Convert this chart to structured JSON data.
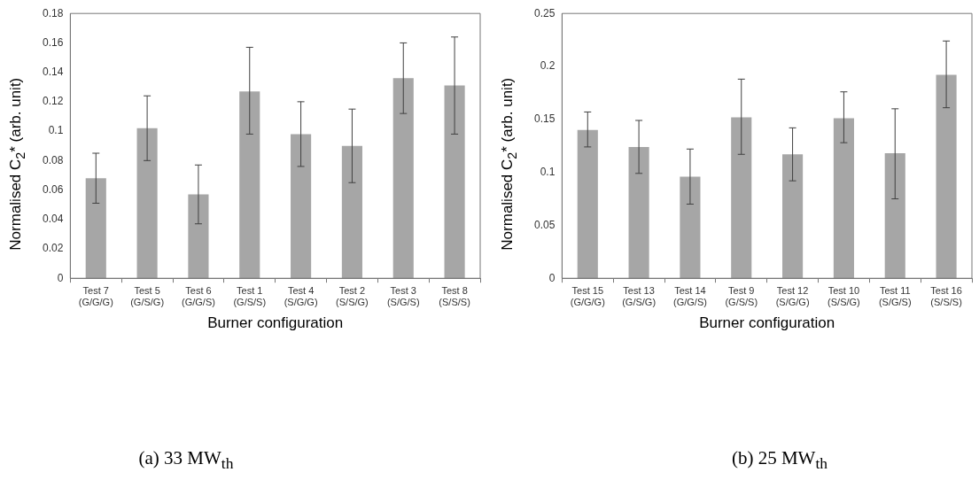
{
  "chart_data": [
    {
      "type": "bar",
      "xlabel": "Burner configuration",
      "ylabel": "Normalised C$_{2}$* (arb. unit)",
      "annotations": [
        "(a) 33 MW$_{th}$"
      ],
      "categories": [
        "Test 7\n(G/G/G)",
        "Test 5\n(G/S/G)",
        "Test 6\n(G/G/S)",
        "Test 1\n(G/S/S)",
        "Test 4\n(S/G/G)",
        "Test 2\n(S/S/G)",
        "Test 3\n(S/G/S)",
        "Test 8\n(S/S/S)"
      ],
      "values": [
        0.068,
        0.102,
        0.057,
        0.127,
        0.098,
        0.09,
        0.136,
        0.131
      ],
      "errors": [
        [
          0.051,
          0.085
        ],
        [
          0.08,
          0.124
        ],
        [
          0.037,
          0.077
        ],
        [
          0.098,
          0.157
        ],
        [
          0.076,
          0.12
        ],
        [
          0.065,
          0.115
        ],
        [
          0.112,
          0.16
        ],
        [
          0.098,
          0.164
        ]
      ],
      "color": "#a6a6a6",
      "ylim": [
        0,
        0.18
      ],
      "yticks": [
        0,
        0.02,
        0.04,
        0.06,
        0.08,
        0.1,
        0.12,
        0.14,
        0.16,
        0.18
      ],
      "grid": false,
      "legend": false
    },
    {
      "type": "bar",
      "xlabel": "Burner configuration",
      "ylabel": "Normalised C$_{2}$* (arb. unit)",
      "annotations": [
        "(b) 25 MW$_{th}$"
      ],
      "categories": [
        "Test 15\n(G/G/G)",
        "Test 13\n(G/S/G)",
        "Test 14\n(G/G/S)",
        "Test 9\n(G/S/S)",
        "Test 12\n(S/G/G)",
        "Test 10\n(S/S/G)",
        "Test 11\n(S/G/S)",
        "Test 16\n(S/S/S)"
      ],
      "values": [
        0.14,
        0.124,
        0.096,
        0.152,
        0.117,
        0.151,
        0.118,
        0.192
      ],
      "errors": [
        [
          0.124,
          0.157
        ],
        [
          0.099,
          0.149
        ],
        [
          0.07,
          0.122
        ],
        [
          0.117,
          0.188
        ],
        [
          0.092,
          0.142
        ],
        [
          0.128,
          0.176
        ],
        [
          0.075,
          0.16
        ],
        [
          0.161,
          0.224
        ]
      ],
      "color": "#a6a6a6",
      "ylim": [
        0,
        0.25
      ],
      "yticks": [
        0,
        0.05,
        0.1,
        0.15,
        0.2,
        0.25
      ],
      "grid": false,
      "legend": false
    }
  ]
}
